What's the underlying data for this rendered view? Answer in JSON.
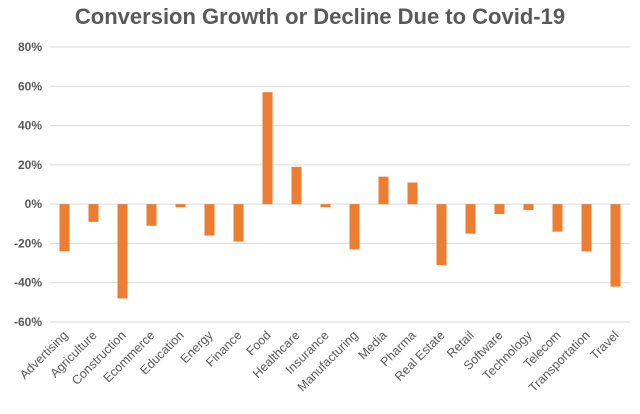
{
  "chart_data": {
    "type": "bar",
    "title": "Conversion Growth or Decline Due to Covid-19",
    "xlabel": "",
    "ylabel": "",
    "ylim": [
      -60,
      80
    ],
    "yticks": [
      80,
      60,
      40,
      20,
      0,
      -20,
      -40,
      -60
    ],
    "ytick_labels": [
      "80%",
      "60%",
      "40%",
      "20%",
      "0%",
      "-20%",
      "-40%",
      "-60%"
    ],
    "grid": true,
    "legend": "none",
    "colors": {
      "bar": "#ED7D31",
      "grid": "#D9D9D9",
      "text": "#595959"
    },
    "categories": [
      "Advertising",
      "Agriculture",
      "Construction",
      "Ecommerce",
      "Education",
      "Energy",
      "Finance",
      "Food",
      "Healthcare",
      "Insurance",
      "Manufacturing",
      "Media",
      "Pharma",
      "Real Estate",
      "Retail",
      "Software",
      "Technology",
      "Telecom",
      "Transportation",
      "Travel"
    ],
    "values": [
      -24,
      -9,
      -48,
      -11,
      -1.5,
      -16,
      -19,
      57,
      19,
      -1.5,
      -23,
      14,
      11,
      -31,
      -15,
      -5,
      -3,
      -14,
      -24,
      -42
    ]
  }
}
